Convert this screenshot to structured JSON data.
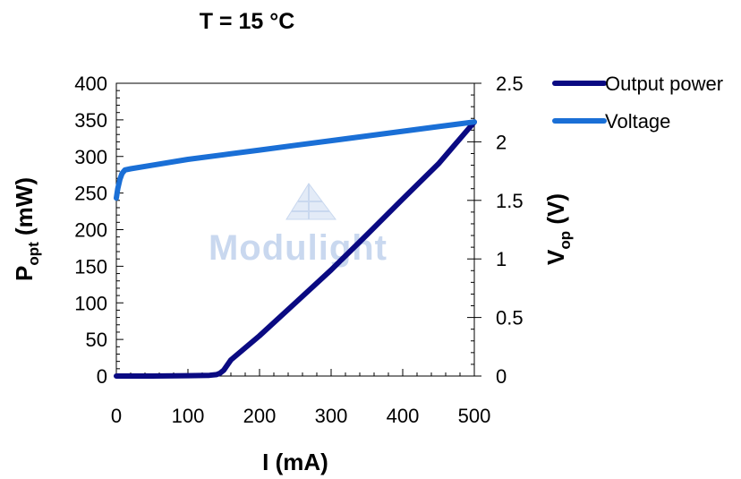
{
  "chart_data": {
    "type": "line",
    "title": "T = 15 °C",
    "xlabel": "I (mA)",
    "ylabel": {
      "base": "P",
      "sub": "opt",
      "suffix": " (mW)"
    },
    "y2label": {
      "base": "V",
      "sub": "op",
      "suffix": " (V)"
    },
    "xlim": [
      0,
      500
    ],
    "ylim": [
      0,
      400
    ],
    "y2lim": [
      0,
      2.5
    ],
    "x_ticks": [
      "0",
      "100",
      "200",
      "300",
      "400",
      "500"
    ],
    "y_ticks": [
      "0",
      "50",
      "100",
      "150",
      "200",
      "250",
      "300",
      "350",
      "400"
    ],
    "y2_ticks": [
      "0",
      "0.5",
      "1",
      "1.5",
      "2",
      "2.5"
    ],
    "grid": false,
    "legend_position": "right",
    "watermark": "Modulight",
    "series": [
      {
        "name": "Output power",
        "axis": "left",
        "color": "#0a0a82",
        "x": [
          0,
          50,
          100,
          130,
          140,
          145,
          150,
          160,
          200,
          250,
          300,
          350,
          400,
          450,
          500
        ],
        "y": [
          0,
          0,
          0.5,
          1,
          2,
          4,
          8,
          22,
          55,
          100,
          145,
          193,
          242,
          290,
          347
        ]
      },
      {
        "name": "Voltage",
        "axis": "right",
        "color": "#1a6fd6",
        "x": [
          0,
          2,
          5,
          8,
          12,
          20,
          50,
          100,
          150,
          200,
          250,
          300,
          350,
          400,
          450,
          500
        ],
        "y": [
          1.52,
          1.6,
          1.68,
          1.73,
          1.76,
          1.77,
          1.8,
          1.85,
          1.89,
          1.93,
          1.97,
          2.01,
          2.05,
          2.09,
          2.13,
          2.17
        ]
      }
    ]
  }
}
